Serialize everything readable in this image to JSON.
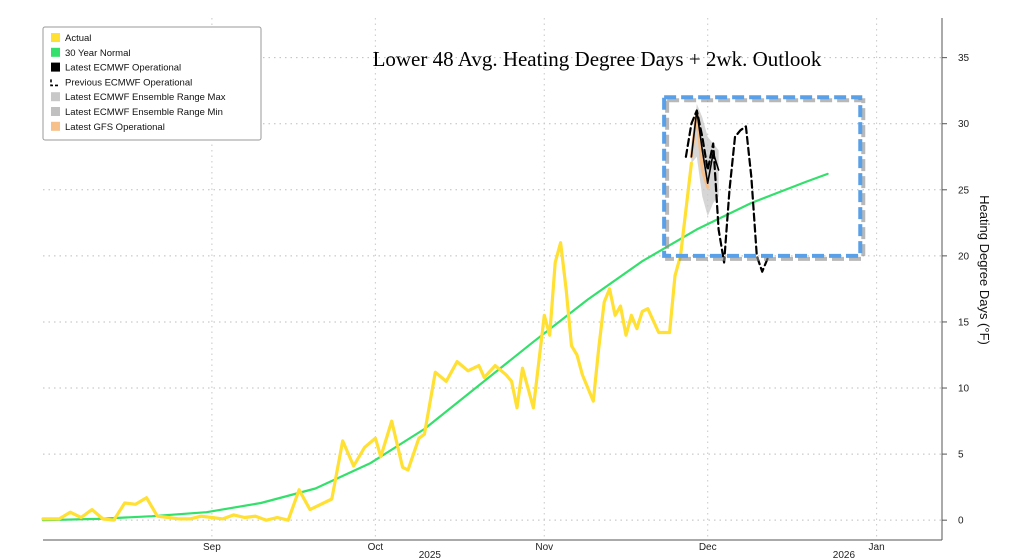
{
  "chart_data": {
    "type": "line",
    "title": "Lower 48 Avg. Heating Degree Days + 2wk. Outlook",
    "ylabel": "Heating Degree Days (°F)",
    "ylim": [
      -1.5,
      38
    ],
    "yticks": [
      0,
      5,
      10,
      15,
      20,
      25,
      30,
      35
    ],
    "xlim": [
      "2025-08-01",
      "2026-01-13"
    ],
    "grid": true,
    "legend_position": "top-left",
    "x_tick_labels": [
      {
        "label": "Sep",
        "date": "2025-09-01"
      },
      {
        "label": "Oct",
        "date": "2025-10-01"
      },
      {
        "label": "Nov",
        "date": "2025-11-01"
      },
      {
        "label": "Dec",
        "date": "2025-12-01"
      },
      {
        "label": "Jan",
        "date": "2026-01-01"
      }
    ],
    "year_labels": [
      {
        "label": "2025",
        "date": "2025-10-11"
      },
      {
        "label": "2026",
        "date": "2025-12-26"
      }
    ],
    "colors": {
      "actual": "#ffe033",
      "normal": "#33e06b",
      "ecmwf_oper": "#000000",
      "prev_ecmwf": "#000000",
      "ens_max": "#c8c8c8",
      "ens_min": "#c0c0c0",
      "gfs": "#f7c08a",
      "box": "#5aa0e8"
    },
    "legend": [
      {
        "label": "Actual",
        "color": "#ffe033",
        "style": "solid"
      },
      {
        "label": "30 Year Normal",
        "color": "#33e06b",
        "style": "solid"
      },
      {
        "label": "Latest ECMWF Operational",
        "color": "#000000",
        "style": "solid"
      },
      {
        "label": "Previous ECMWF Operational",
        "color": "#000000",
        "style": "dashed"
      },
      {
        "label": "Latest ECMWF Ensemble Range Max",
        "color": "#c8c8c8",
        "style": "solid"
      },
      {
        "label": "Latest ECMWF Ensemble Range Min",
        "color": "#c0c0c0",
        "style": "solid"
      },
      {
        "label": "Latest GFS Operational",
        "color": "#f7c08a",
        "style": "solid"
      }
    ],
    "series": [
      {
        "name": "Actual",
        "x": [
          "2025-08-01",
          "2025-08-04",
          "2025-08-06",
          "2025-08-08",
          "2025-08-10",
          "2025-08-12",
          "2025-08-14",
          "2025-08-16",
          "2025-08-18",
          "2025-08-20",
          "2025-08-22",
          "2025-08-24",
          "2025-08-26",
          "2025-08-28",
          "2025-08-30",
          "2025-09-01",
          "2025-09-03",
          "2025-09-05",
          "2025-09-07",
          "2025-09-09",
          "2025-09-11",
          "2025-09-13",
          "2025-09-15",
          "2025-09-17",
          "2025-09-19",
          "2025-09-21",
          "2025-09-23",
          "2025-09-25",
          "2025-09-27",
          "2025-09-29",
          "2025-10-01",
          "2025-10-02",
          "2025-10-04",
          "2025-10-06",
          "2025-10-07",
          "2025-10-09",
          "2025-10-10",
          "2025-10-12",
          "2025-10-14",
          "2025-10-16",
          "2025-10-18",
          "2025-10-20",
          "2025-10-21",
          "2025-10-23",
          "2025-10-25",
          "2025-10-26",
          "2025-10-27",
          "2025-10-28",
          "2025-10-30",
          "2025-11-01",
          "2025-11-02",
          "2025-11-03",
          "2025-11-04",
          "2025-11-05",
          "2025-11-06",
          "2025-11-07",
          "2025-11-08",
          "2025-11-10",
          "2025-11-11",
          "2025-11-12",
          "2025-11-13",
          "2025-11-14",
          "2025-11-15",
          "2025-11-16",
          "2025-11-17",
          "2025-11-18",
          "2025-11-19",
          "2025-11-20",
          "2025-11-22",
          "2025-11-24",
          "2025-11-25",
          "2025-11-26",
          "2025-11-28"
        ],
        "y": [
          0.1,
          0.1,
          0.6,
          0.2,
          0.8,
          0.1,
          0.0,
          1.3,
          1.2,
          1.7,
          0.3,
          0.2,
          0.1,
          0.1,
          0.3,
          0.2,
          0.1,
          0.4,
          0.2,
          0.3,
          0.0,
          0.2,
          0.0,
          2.3,
          0.8,
          1.2,
          1.6,
          6.0,
          4.1,
          5.5,
          6.2,
          4.8,
          7.5,
          4.0,
          3.8,
          6.2,
          6.5,
          11.2,
          10.5,
          12.0,
          11.3,
          11.7,
          10.8,
          11.7,
          11.0,
          10.5,
          8.5,
          11.5,
          8.5,
          15.5,
          14.0,
          19.5,
          21.0,
          17.5,
          13.2,
          12.5,
          11.0,
          9.0,
          13.0,
          16.5,
          17.5,
          15.5,
          16.2,
          14.0,
          15.5,
          14.5,
          15.8,
          16.0,
          14.2,
          14.2,
          18.5,
          20.0,
          27.0
        ]
      },
      {
        "name": "30 Year Normal",
        "x": [
          "2025-08-01",
          "2025-08-11",
          "2025-08-21",
          "2025-08-31",
          "2025-09-10",
          "2025-09-20",
          "2025-09-30",
          "2025-10-10",
          "2025-10-20",
          "2025-10-30",
          "2025-11-09",
          "2025-11-19",
          "2025-11-29",
          "2025-12-09",
          "2025-12-19",
          "2025-12-23"
        ],
        "y": [
          0.0,
          0.1,
          0.3,
          0.6,
          1.3,
          2.4,
          4.3,
          6.9,
          10.2,
          13.5,
          16.7,
          19.6,
          22.0,
          24.0,
          25.6,
          26.2
        ]
      },
      {
        "name": "Latest GFS Operational",
        "x": [
          "2025-11-28",
          "2025-11-29",
          "2025-11-30",
          "2025-12-01"
        ],
        "y": [
          27.5,
          30.8,
          26.5,
          25.2
        ]
      },
      {
        "name": "Latest ECMWF Operational",
        "x": [
          "2025-11-28",
          "2025-11-29",
          "2025-11-30",
          "2025-12-01",
          "2025-12-02",
          "2025-12-03"
        ],
        "y": [
          27.5,
          31.0,
          28.0,
          25.5,
          27.8,
          26.5
        ]
      },
      {
        "name": "Previous ECMWF Operational",
        "x": [
          "2025-11-27",
          "2025-11-28",
          "2025-11-29",
          "2025-11-30",
          "2025-12-01",
          "2025-12-02",
          "2025-12-03",
          "2025-12-04",
          "2025-12-05",
          "2025-12-06",
          "2025-12-07",
          "2025-12-08",
          "2025-12-09",
          "2025-12-10",
          "2025-12-11",
          "2025-12-12"
        ],
        "y": [
          27.5,
          30.0,
          31.0,
          29.0,
          26.5,
          28.5,
          22.0,
          19.5,
          25.0,
          29.0,
          29.5,
          29.8,
          26.0,
          20.0,
          18.8,
          19.8
        ]
      },
      {
        "name": "Latest ECMWF Ensemble Range Max",
        "x": [
          "2025-11-28",
          "2025-11-29",
          "2025-11-30",
          "2025-12-01",
          "2025-12-02",
          "2025-12-03"
        ],
        "y": [
          28.0,
          31.5,
          30.5,
          29.0,
          28.5,
          28.0
        ]
      },
      {
        "name": "Latest ECMWF Ensemble Range Min",
        "x": [
          "2025-11-28",
          "2025-11-29",
          "2025-11-30",
          "2025-12-01",
          "2025-12-02",
          "2025-12-03"
        ],
        "y": [
          27.0,
          27.5,
          24.5,
          23.0,
          24.0,
          24.5
        ]
      }
    ],
    "annotation_box": {
      "x": [
        "2025-11-23",
        "2025-12-29"
      ],
      "y": [
        20,
        32
      ]
    }
  }
}
